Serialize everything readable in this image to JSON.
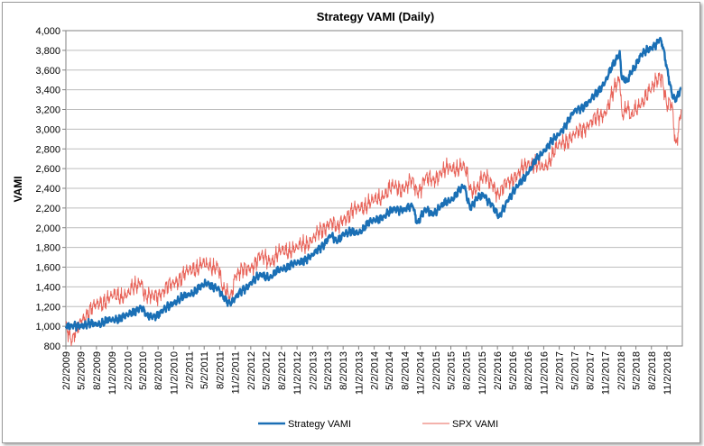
{
  "chart_data": {
    "type": "line",
    "title": "Strategy VAMI (Daily)",
    "xlabel": "",
    "ylabel": "VAMI",
    "ylim": [
      800,
      4000
    ],
    "grid": true,
    "legend_position": "bottom",
    "y_ticks": [
      "800",
      "1,000",
      "1,200",
      "1,400",
      "1,600",
      "1,800",
      "2,000",
      "2,200",
      "2,400",
      "2,600",
      "2,800",
      "3,000",
      "3,200",
      "3,400",
      "3,600",
      "3,800",
      "4,000"
    ],
    "x_ticks": [
      "2/2/2009",
      "5/2/2009",
      "8/2/2009",
      "11/2/2009",
      "2/2/2010",
      "5/2/2010",
      "8/2/2010",
      "11/2/2010",
      "2/2/2011",
      "5/2/2011",
      "8/2/2011",
      "11/2/2011",
      "2/2/2012",
      "5/2/2012",
      "8/2/2012",
      "11/2/2012",
      "2/2/2013",
      "5/2/2013",
      "8/2/2013",
      "11/2/2013",
      "2/2/2014",
      "5/2/2014",
      "8/2/2014",
      "11/2/2014",
      "2/2/2015",
      "5/2/2015",
      "8/2/2015",
      "11/2/2015",
      "2/2/2016",
      "5/2/2016",
      "8/2/2016",
      "11/2/2016",
      "2/2/2017",
      "5/2/2017",
      "8/2/2017",
      "11/2/2017",
      "2/2/2018",
      "5/2/2018",
      "8/2/2018",
      "11/2/2018"
    ],
    "series": [
      {
        "name": "Strategy VAMI",
        "color": "#1a6fb5",
        "x": [
          "2009-02-02",
          "2009-03-09",
          "2009-05-01",
          "2009-08-01",
          "2009-11-01",
          "2010-02-01",
          "2010-04-23",
          "2010-05-25",
          "2010-07-01",
          "2010-08-27",
          "2010-11-01",
          "2011-02-01",
          "2011-04-29",
          "2011-05-20",
          "2011-07-22",
          "2011-08-19",
          "2011-10-04",
          "2011-11-01",
          "2012-02-01",
          "2012-04-02",
          "2012-06-01",
          "2012-08-01",
          "2012-11-01",
          "2013-02-01",
          "2013-05-21",
          "2013-06-24",
          "2013-08-01",
          "2013-11-01",
          "2014-02-01",
          "2014-04-01",
          "2014-06-01",
          "2014-08-01",
          "2014-09-19",
          "2014-10-15",
          "2014-12-01",
          "2015-01-15",
          "2015-03-01",
          "2015-05-01",
          "2015-07-20",
          "2015-08-25",
          "2015-10-01",
          "2015-11-15",
          "2016-01-01",
          "2016-02-11",
          "2016-04-01",
          "2016-06-01",
          "2016-08-01",
          "2016-11-01",
          "2017-02-01",
          "2017-05-01",
          "2017-08-01",
          "2017-11-01",
          "2018-01-26",
          "2018-02-08",
          "2018-03-12",
          "2018-04-02",
          "2018-06-01",
          "2018-08-01",
          "2018-09-20",
          "2018-10-05",
          "2018-11-01",
          "2018-12-01",
          "2018-12-24",
          "2019-01-25"
        ],
        "values": [
          1000,
          1000,
          1010,
          1020,
          1060,
          1110,
          1200,
          1110,
          1100,
          1150,
          1240,
          1320,
          1410,
          1440,
          1380,
          1300,
          1240,
          1290,
          1440,
          1520,
          1500,
          1580,
          1640,
          1720,
          1920,
          1860,
          1940,
          1950,
          2080,
          2110,
          2200,
          2180,
          2230,
          2050,
          2180,
          2140,
          2210,
          2280,
          2420,
          2200,
          2300,
          2330,
          2240,
          2100,
          2280,
          2420,
          2560,
          2780,
          2950,
          3180,
          3280,
          3480,
          3780,
          3520,
          3480,
          3560,
          3760,
          3820,
          3920,
          3860,
          3620,
          3360,
          3300,
          3420
        ]
      },
      {
        "name": "SPX VAMI",
        "color": "#e8645a",
        "x": [
          "2009-02-02",
          "2009-03-09",
          "2009-05-01",
          "2009-08-01",
          "2009-11-01",
          "2010-02-01",
          "2010-04-23",
          "2010-05-25",
          "2010-07-01",
          "2010-08-27",
          "2010-11-01",
          "2011-02-01",
          "2011-04-29",
          "2011-05-20",
          "2011-07-22",
          "2011-08-19",
          "2011-10-04",
          "2011-11-01",
          "2012-02-01",
          "2012-04-02",
          "2012-06-01",
          "2012-08-01",
          "2012-11-01",
          "2013-02-01",
          "2013-05-21",
          "2013-06-24",
          "2013-08-01",
          "2013-11-01",
          "2014-02-01",
          "2014-04-01",
          "2014-06-01",
          "2014-08-01",
          "2014-09-19",
          "2014-10-15",
          "2014-12-01",
          "2015-01-15",
          "2015-03-01",
          "2015-05-01",
          "2015-07-20",
          "2015-08-25",
          "2015-10-01",
          "2015-11-15",
          "2016-01-01",
          "2016-02-11",
          "2016-04-01",
          "2016-06-01",
          "2016-08-01",
          "2016-11-01",
          "2017-02-01",
          "2017-05-01",
          "2017-08-01",
          "2017-11-01",
          "2018-01-26",
          "2018-02-08",
          "2018-03-12",
          "2018-04-02",
          "2018-06-01",
          "2018-08-01",
          "2018-09-20",
          "2018-10-05",
          "2018-11-01",
          "2018-12-01",
          "2018-12-24",
          "2019-01-25"
        ],
        "values": [
          1040,
          840,
          1060,
          1220,
          1300,
          1320,
          1460,
          1280,
          1310,
          1350,
          1440,
          1560,
          1640,
          1600,
          1620,
          1370,
          1300,
          1520,
          1600,
          1710,
          1660,
          1760,
          1790,
          1880,
          2070,
          1990,
          2090,
          2200,
          2270,
          2330,
          2420,
          2400,
          2480,
          2360,
          2500,
          2480,
          2560,
          2600,
          2620,
          2390,
          2400,
          2520,
          2460,
          2320,
          2480,
          2530,
          2660,
          2600,
          2840,
          2940,
          3060,
          3170,
          3520,
          3160,
          3230,
          3110,
          3270,
          3400,
          3560,
          3530,
          3220,
          3250,
          2840,
          3200
        ]
      }
    ]
  }
}
